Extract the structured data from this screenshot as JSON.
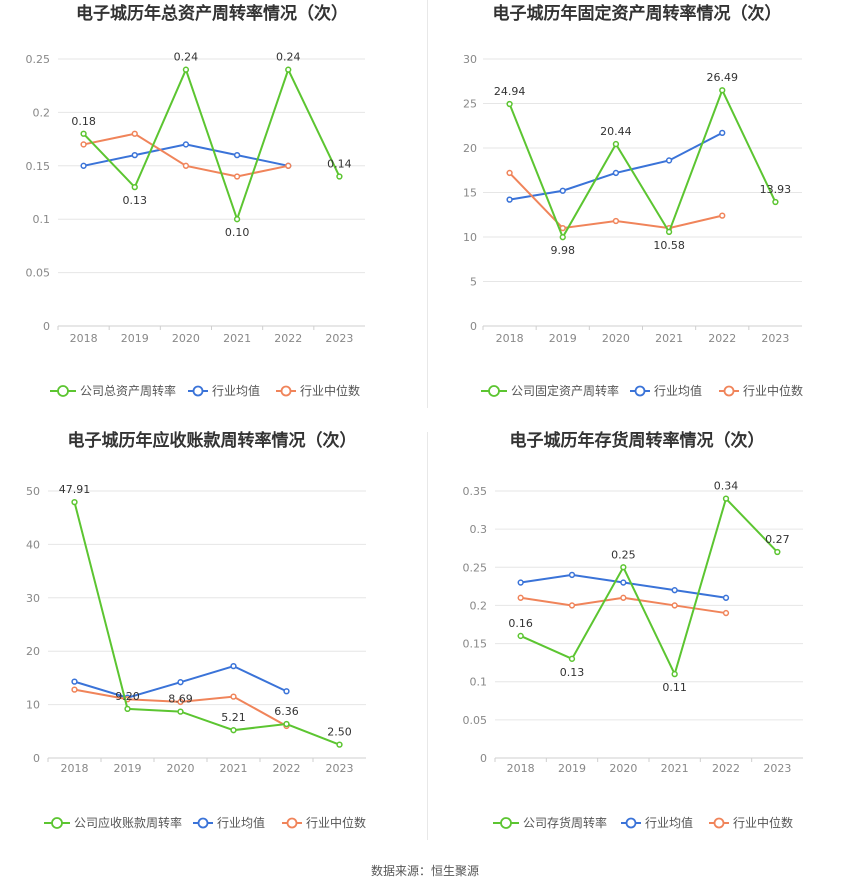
{
  "colors": {
    "company": "#5cc531",
    "avg": "#3a73d8",
    "median": "#f0845a"
  },
  "footer": {
    "source_label": "数据来源：恒生聚源"
  },
  "chart_data": [
    {
      "type": "line",
      "title": "电子城历年总资产周转率情况（次）",
      "categories": [
        "2018",
        "2019",
        "2020",
        "2021",
        "2022",
        "2023"
      ],
      "ylim": [
        0,
        0.25
      ],
      "yticks": [
        "0",
        "0.05",
        "0.1",
        "0.15",
        "0.2",
        "0.25"
      ],
      "series": [
        {
          "name": "公司总资产周转率",
          "role": "company",
          "values": [
            0.18,
            0.13,
            0.24,
            0.1,
            0.24,
            0.14
          ],
          "labels": [
            "0.18",
            "0.13",
            "0.24",
            "0.10",
            "0.24",
            "0.14"
          ]
        },
        {
          "name": "行业均值",
          "role": "avg",
          "values": [
            0.15,
            0.16,
            0.17,
            0.16,
            0.15,
            null
          ]
        },
        {
          "name": "行业中位数",
          "role": "median",
          "values": [
            0.17,
            0.18,
            0.15,
            0.14,
            0.15,
            null
          ]
        }
      ]
    },
    {
      "type": "line",
      "title": "电子城历年固定资产周转率情况（次）",
      "categories": [
        "2018",
        "2019",
        "2020",
        "2021",
        "2022",
        "2023"
      ],
      "ylim": [
        0,
        30
      ],
      "yticks": [
        "0",
        "5",
        "10",
        "15",
        "20",
        "25",
        "30"
      ],
      "series": [
        {
          "name": "公司固定资产周转率",
          "role": "company",
          "values": [
            24.94,
            9.98,
            20.44,
            10.58,
            26.49,
            13.93
          ],
          "labels": [
            "24.94",
            "9.98",
            "20.44",
            "10.58",
            "26.49",
            "13.93"
          ]
        },
        {
          "name": "行业均值",
          "role": "avg",
          "values": [
            14.2,
            15.2,
            17.2,
            18.6,
            21.7,
            null
          ]
        },
        {
          "name": "行业中位数",
          "role": "median",
          "values": [
            17.2,
            11.0,
            11.8,
            11.0,
            12.4,
            null
          ]
        }
      ]
    },
    {
      "type": "line",
      "title": "电子城历年应收账款周转率情况（次）",
      "categories": [
        "2018",
        "2019",
        "2020",
        "2021",
        "2022",
        "2023"
      ],
      "ylim": [
        0,
        50
      ],
      "yticks": [
        "0",
        "10",
        "20",
        "30",
        "40",
        "50"
      ],
      "series": [
        {
          "name": "公司应收账款周转率",
          "role": "company",
          "values": [
            47.91,
            9.2,
            8.69,
            5.21,
            6.36,
            2.5
          ],
          "labels": [
            "47.91",
            "9.20",
            "8.69",
            "5.21",
            "6.36",
            "2.50"
          ]
        },
        {
          "name": "行业均值",
          "role": "avg",
          "values": [
            14.3,
            11.3,
            14.2,
            17.2,
            12.5,
            null
          ]
        },
        {
          "name": "行业中位数",
          "role": "median",
          "values": [
            12.8,
            11.0,
            10.5,
            11.5,
            6.0,
            null
          ]
        }
      ]
    },
    {
      "type": "line",
      "title": "电子城历年存货周转率情况（次）",
      "categories": [
        "2018",
        "2019",
        "2020",
        "2021",
        "2022",
        "2023"
      ],
      "ylim": [
        0,
        0.35
      ],
      "yticks": [
        "0",
        "0.05",
        "0.1",
        "0.15",
        "0.2",
        "0.25",
        "0.3",
        "0.35"
      ],
      "series": [
        {
          "name": "公司存货周转率",
          "role": "company",
          "values": [
            0.16,
            0.13,
            0.25,
            0.11,
            0.34,
            0.27
          ],
          "labels": [
            "0.16",
            "0.13",
            "0.25",
            "0.11",
            "0.34",
            "0.27"
          ]
        },
        {
          "name": "行业均值",
          "role": "avg",
          "values": [
            0.23,
            0.24,
            0.23,
            0.22,
            0.21,
            null
          ]
        },
        {
          "name": "行业中位数",
          "role": "median",
          "values": [
            0.21,
            0.2,
            0.21,
            0.2,
            0.19,
            null
          ]
        }
      ]
    }
  ]
}
